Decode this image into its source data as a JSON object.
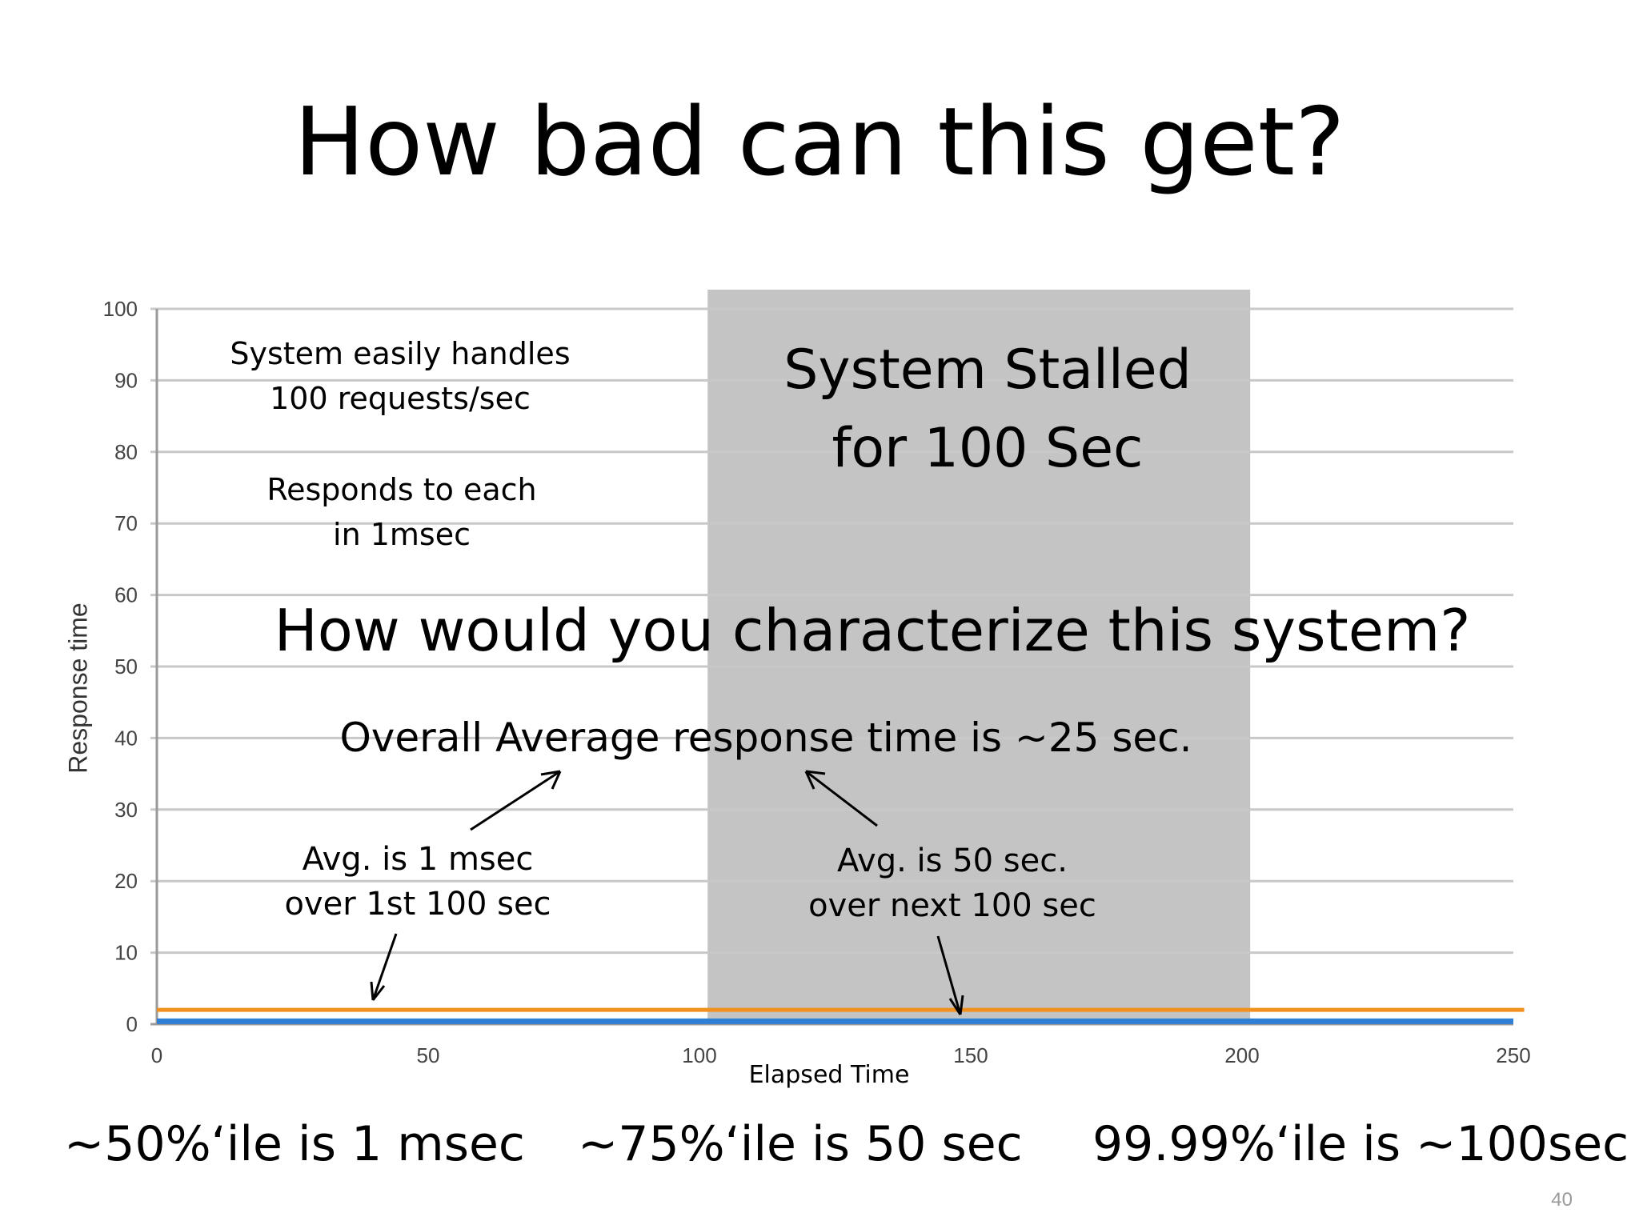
{
  "slide": {
    "title": "How bad can this get?",
    "page_number": "40"
  },
  "annotations": {
    "handles_line1": "System easily handles",
    "handles_line2": "100 requests/sec",
    "responds_line1": "Responds to each",
    "responds_line2": "in 1msec",
    "stalled_line1": "System Stalled",
    "stalled_line2": "for 100 Sec",
    "question": "How would you characterize this system?",
    "overall_avg": "Overall Average response time is ~25 sec.",
    "avg1_line1": "Avg. is 1 msec",
    "avg1_line2": "over 1st 100 sec",
    "avg2_line1": "Avg. is 50 sec.",
    "avg2_line2": "over next 100 sec"
  },
  "percentiles": {
    "p50": "~50%‘ile is 1 msec",
    "p75": "~75%‘ile is 50 sec",
    "p9999": "99.99%‘ile is ~100sec"
  },
  "chart_data": {
    "type": "line",
    "xlabel": "Elapsed Time",
    "ylabel": "Response time",
    "xlim": [
      0,
      250
    ],
    "ylim": [
      0,
      100
    ],
    "x_ticks": [
      0,
      50,
      100,
      150,
      200,
      250
    ],
    "y_ticks": [
      0,
      10,
      20,
      30,
      40,
      50,
      60,
      70,
      80,
      90,
      100
    ],
    "grid": true,
    "shaded_region": {
      "x_start": 101.5,
      "x_end": 201.5,
      "color": "#c4c4c4"
    },
    "series": [
      {
        "color": "#f0901e",
        "x": [
          0,
          252
        ],
        "y": [
          2,
          2
        ]
      },
      {
        "color": "#2f7fd6",
        "x": [
          0,
          250
        ],
        "y": [
          0.4,
          0.4
        ]
      }
    ]
  }
}
